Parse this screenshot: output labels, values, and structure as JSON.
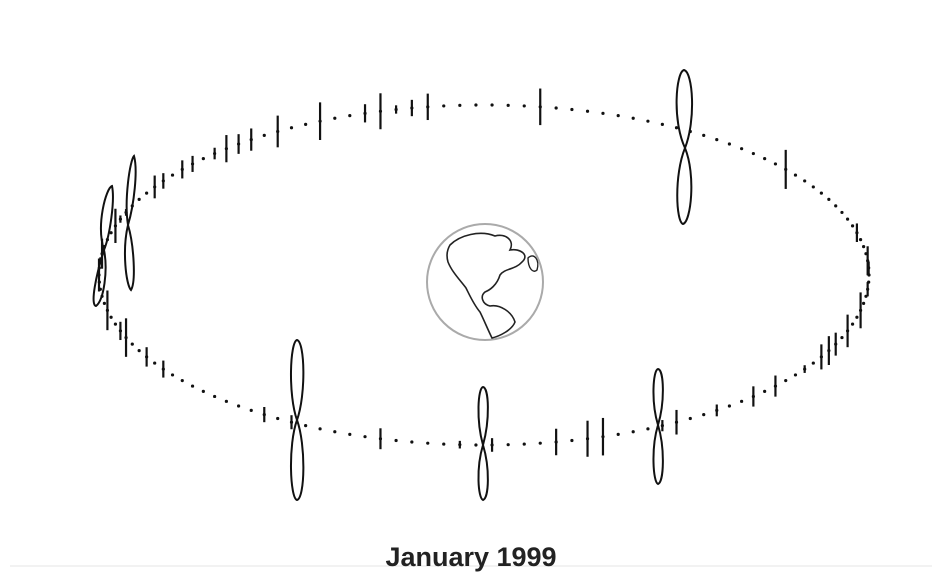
{
  "caption": "January 1999"
}
